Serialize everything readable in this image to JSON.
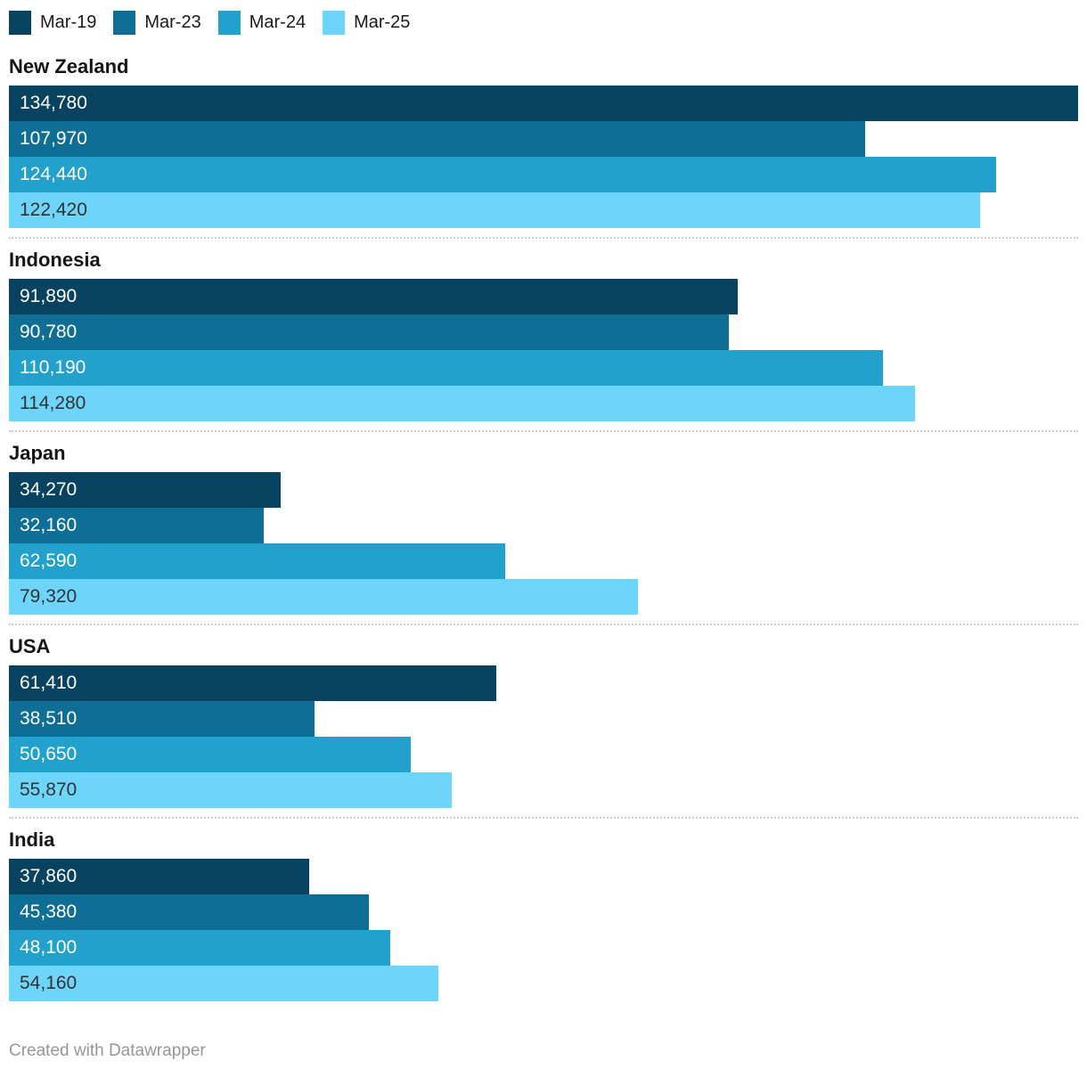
{
  "chart_data": {
    "type": "bar",
    "orientation": "horizontal",
    "title": "",
    "xlabel": "",
    "ylabel": "",
    "grid": false,
    "legend_position": "top",
    "xmax": 134780,
    "value_format": "thousands-comma",
    "categories": [
      "New Zealand",
      "Indonesia",
      "Japan",
      "USA",
      "India"
    ],
    "series": [
      {
        "name": "Mar-19",
        "color": "#074261",
        "label_color": "#ffffff",
        "values": [
          134780,
          91890,
          34270,
          61410,
          37860
        ]
      },
      {
        "name": "Mar-23",
        "color": "#0e6e96",
        "label_color": "#ffffff",
        "values": [
          107970,
          90780,
          32160,
          38510,
          45380
        ]
      },
      {
        "name": "Mar-24",
        "color": "#22a1cd",
        "label_color": "#ffffff",
        "values": [
          124440,
          110190,
          62590,
          50650,
          48100
        ]
      },
      {
        "name": "Mar-25",
        "color": "#6dd4fa",
        "label_color": "#333333",
        "values": [
          122420,
          114280,
          79320,
          55870,
          54160
        ]
      }
    ],
    "displayed_value_labels": {
      "New Zealand": [
        "134,780",
        "107,970",
        "124,440",
        "122,420"
      ],
      "Indonesia": [
        "91,890",
        "90,780",
        "110,190",
        "114,280"
      ],
      "Japan": [
        "34,270",
        "32,160",
        "62,590",
        "79,320"
      ],
      "USA": [
        "61,410",
        "38,510",
        "50,650",
        "55,870"
      ],
      "India": [
        "37,860",
        "45,380",
        "48,100",
        "54,160"
      ]
    },
    "separator_color": "#cccccc",
    "category_label_color": "#141414",
    "legend_text_color": "#1a1a1a"
  },
  "footer": {
    "credit": "Created with Datawrapper",
    "credit_color": "#969696"
  }
}
